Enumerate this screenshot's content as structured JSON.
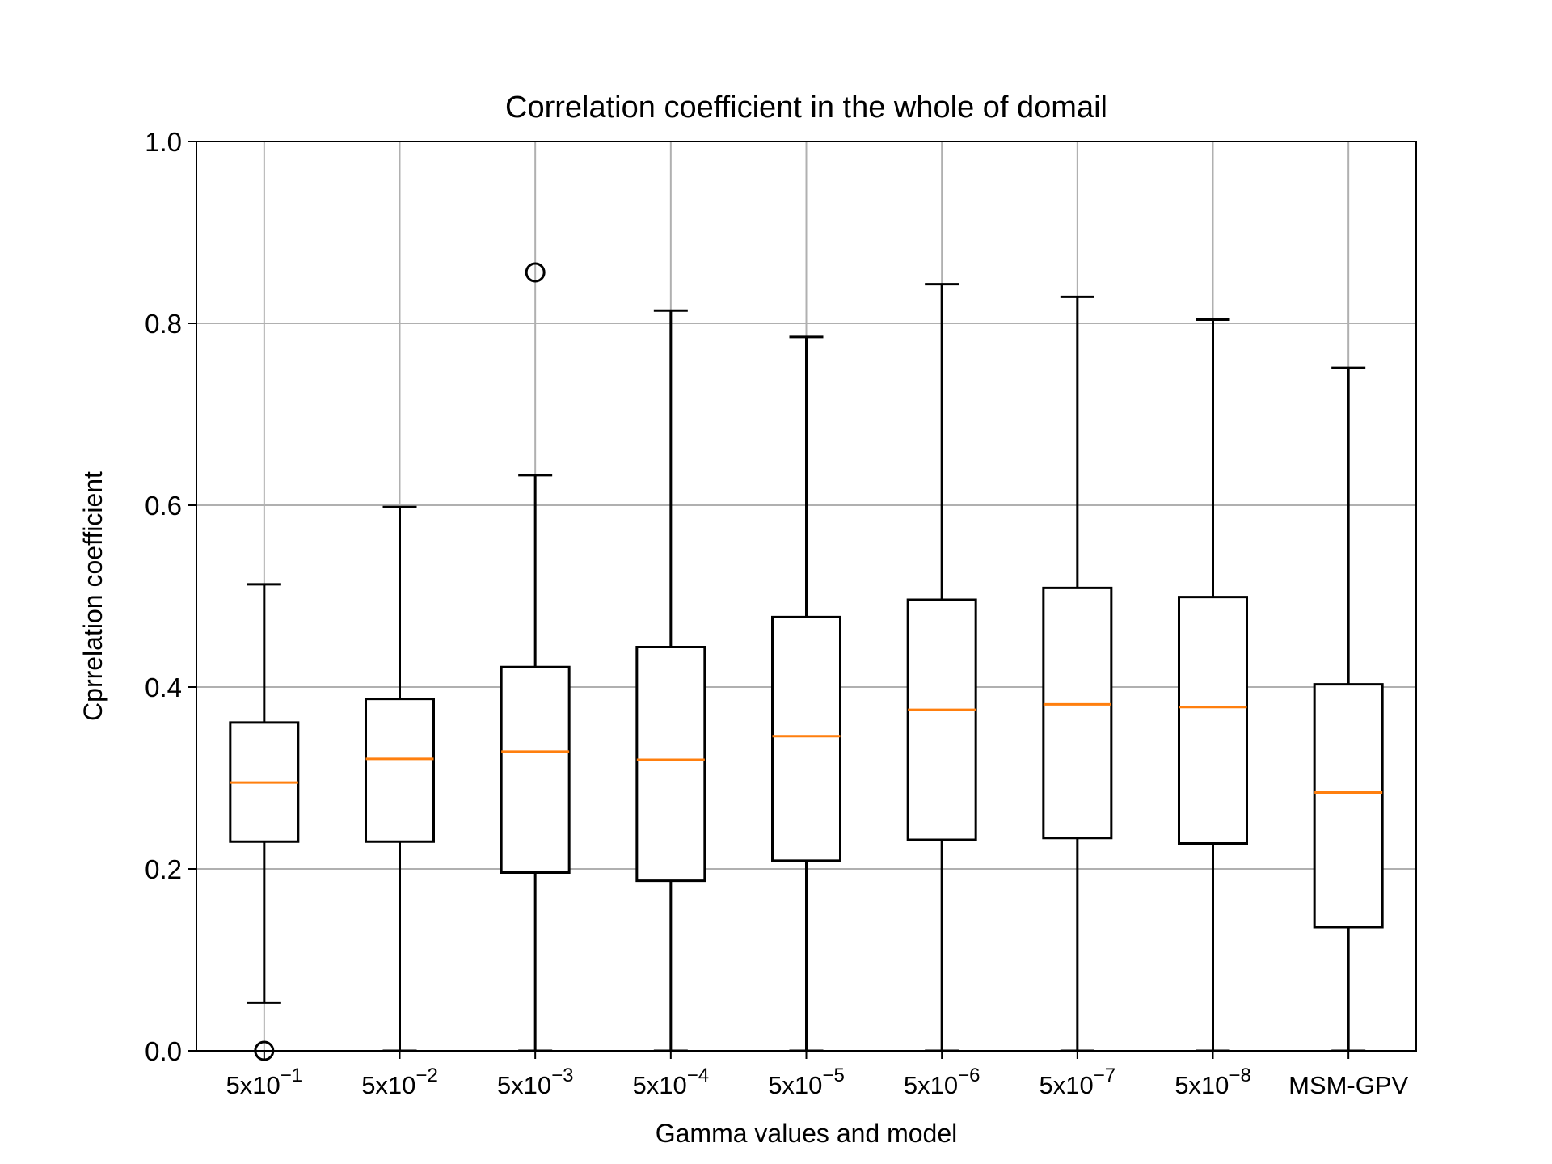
{
  "chart_data": {
    "type": "box",
    "title": "Correlation coefficient in the whole of domail",
    "xlabel": "Gamma values and model",
    "ylabel": "Cprrelation coefficient",
    "ylim": [
      0.0,
      1.0
    ],
    "yticks": [
      "0.0",
      "0.2",
      "0.4",
      "0.6",
      "0.8",
      "1.0"
    ],
    "grid": true,
    "colors": {
      "box": "#000000",
      "median": "#ff7f0e",
      "grid": "#b0b0b0"
    },
    "categories": [
      {
        "base": "5x10",
        "exp": "−1"
      },
      {
        "base": "5x10",
        "exp": "−2"
      },
      {
        "base": "5x10",
        "exp": "−3"
      },
      {
        "base": "5x10",
        "exp": "−4"
      },
      {
        "base": "5x10",
        "exp": "−5"
      },
      {
        "base": "5x10",
        "exp": "−6"
      },
      {
        "base": "5x10",
        "exp": "−7"
      },
      {
        "base": "5x10",
        "exp": "−8"
      },
      {
        "base": "MSM-GPV",
        "exp": ""
      }
    ],
    "boxes": [
      {
        "whisker_low": 0.053,
        "q1": 0.23,
        "median": 0.295,
        "q3": 0.361,
        "whisker_high": 0.513,
        "outliers": [
          0.0
        ]
      },
      {
        "whisker_low": 0.0,
        "q1": 0.23,
        "median": 0.321,
        "q3": 0.387,
        "whisker_high": 0.598,
        "outliers": []
      },
      {
        "whisker_low": 0.0,
        "q1": 0.196,
        "median": 0.329,
        "q3": 0.422,
        "whisker_high": 0.633,
        "outliers": [
          0.856
        ]
      },
      {
        "whisker_low": 0.0,
        "q1": 0.187,
        "median": 0.32,
        "q3": 0.444,
        "whisker_high": 0.814,
        "outliers": []
      },
      {
        "whisker_low": 0.0,
        "q1": 0.209,
        "median": 0.346,
        "q3": 0.477,
        "whisker_high": 0.785,
        "outliers": []
      },
      {
        "whisker_low": 0.0,
        "q1": 0.232,
        "median": 0.375,
        "q3": 0.496,
        "whisker_high": 0.843,
        "outliers": []
      },
      {
        "whisker_low": 0.0,
        "q1": 0.234,
        "median": 0.381,
        "q3": 0.509,
        "whisker_high": 0.829,
        "outliers": []
      },
      {
        "whisker_low": 0.0,
        "q1": 0.228,
        "median": 0.378,
        "q3": 0.499,
        "whisker_high": 0.804,
        "outliers": []
      },
      {
        "whisker_low": 0.0,
        "q1": 0.136,
        "median": 0.284,
        "q3": 0.403,
        "whisker_high": 0.751,
        "outliers": []
      }
    ]
  }
}
